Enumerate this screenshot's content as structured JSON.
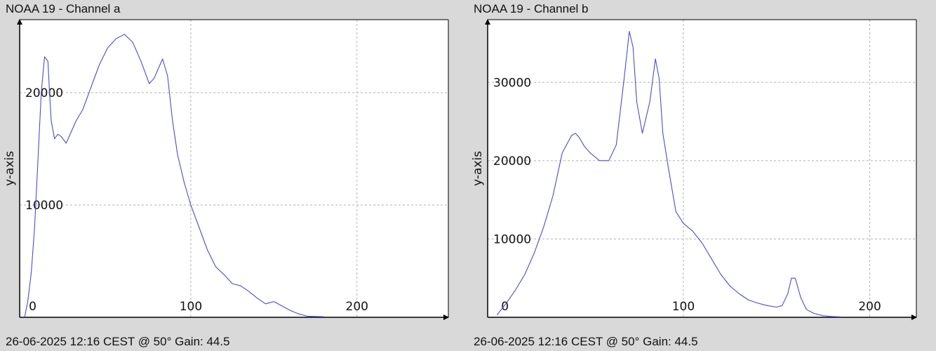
{
  "panels": [
    {
      "title": "NOAA 19 - Channel a",
      "footer": "26-06-2025 12:16 CEST @ 50° Gain: 44.5"
    },
    {
      "title": "NOAA 19 - Channel b",
      "footer": "26-06-2025 12:16 CEST @ 50° Gain: 44.5"
    }
  ],
  "colors": {
    "background": "#d9d9d9",
    "plot_area": "#ffffff",
    "line": "#4b4bd6",
    "grid": "#b0b0b0",
    "axis": "#000000"
  },
  "chart_data": [
    {
      "type": "line",
      "title": "",
      "xlabel": "",
      "ylabel": "y-axis",
      "xlim": [
        -3,
        255
      ],
      "ylim": [
        0,
        26500
      ],
      "x_ticks": [
        0,
        100,
        200
      ],
      "y_ticks": [
        0,
        10000,
        20000
      ],
      "grid": true,
      "series": [
        {
          "x": [
            0,
            2,
            4,
            6,
            8,
            10,
            12,
            14,
            15,
            16,
            18,
            20,
            22,
            25,
            28,
            31,
            35,
            40,
            45,
            50,
            55,
            60,
            65,
            70,
            75,
            78,
            80,
            83,
            86,
            89,
            92,
            96,
            100,
            105,
            110,
            115,
            120,
            125,
            130,
            135,
            140,
            145,
            150,
            155,
            160,
            165,
            170,
            180
          ],
          "y": [
            0,
            1500,
            4000,
            8000,
            14000,
            20000,
            23200,
            22800,
            20000,
            17500,
            15900,
            16300,
            16100,
            15500,
            16500,
            17500,
            18500,
            20500,
            22500,
            24000,
            24800,
            25200,
            24500,
            22800,
            20800,
            21300,
            22000,
            23000,
            21500,
            17500,
            14500,
            12000,
            10000,
            8000,
            6000,
            4500,
            3800,
            3000,
            2800,
            2300,
            1700,
            1200,
            1400,
            1000,
            600,
            300,
            100,
            50
          ]
        }
      ]
    },
    {
      "type": "line",
      "title": "",
      "xlabel": "",
      "ylabel": "y-axis",
      "xlim": [
        -5,
        225
      ],
      "ylim": [
        0,
        38000
      ],
      "x_ticks": [
        0,
        100,
        200
      ],
      "y_ticks": [
        0,
        10000,
        20000,
        30000
      ],
      "grid": true,
      "series": [
        {
          "x": [
            0,
            5,
            10,
            15,
            20,
            25,
            30,
            35,
            40,
            42,
            44,
            47,
            50,
            55,
            60,
            64,
            68,
            71,
            73,
            75,
            78,
            82,
            85,
            87,
            89,
            92,
            96,
            100,
            105,
            110,
            115,
            120,
            125,
            130,
            135,
            140,
            145,
            150,
            153,
            156,
            158,
            160,
            163,
            166,
            170,
            175,
            180,
            185
          ],
          "y": [
            300,
            1800,
            3500,
            5500,
            8200,
            11500,
            15500,
            21000,
            23200,
            23500,
            23000,
            21800,
            21000,
            20000,
            20000,
            22000,
            30000,
            36500,
            34500,
            27500,
            23500,
            27500,
            33000,
            30500,
            23500,
            19000,
            13500,
            12000,
            11000,
            9500,
            7500,
            5500,
            4000,
            3000,
            2200,
            1800,
            1500,
            1300,
            1500,
            3000,
            5000,
            5000,
            2500,
            1000,
            500,
            200,
            100,
            50
          ]
        }
      ]
    }
  ]
}
